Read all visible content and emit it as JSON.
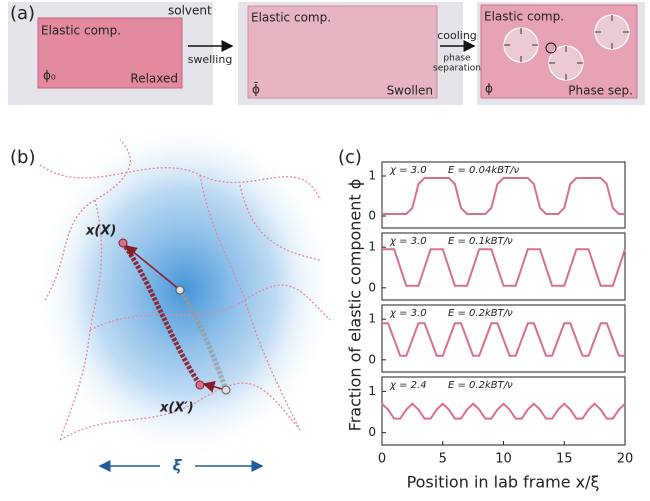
{
  "panel_a": {
    "label": "(a)",
    "boxes": [
      {
        "title": "Elastic comp.",
        "note": "solvent",
        "symbol": "ϕ₀",
        "state": "Relaxed"
      },
      {
        "title": "Elastic comp.",
        "symbol": "ϕ̄",
        "state": "Swollen"
      },
      {
        "title": "Elastic comp.",
        "symbol": "ϕ",
        "state": "Phase sep."
      }
    ],
    "arrows": [
      "swelling",
      "cooling",
      "phase",
      "separation"
    ]
  },
  "panel_b": {
    "label": "(b)",
    "texts": [
      "x(X)",
      "x(X′)",
      "ξ"
    ]
  },
  "panel_c": {
    "label": "(c)",
    "y_label": "Fraction of elastic component ϕ",
    "x_label": "Position in lab frame x/ξ"
  },
  "chart_data": [
    {
      "type": "line",
      "annotations": [
        "χ = 3.0",
        "E = 0.04kBT/ν"
      ],
      "x": [
        0,
        0.5,
        1,
        1.5,
        2,
        2.5,
        3,
        3.5,
        4,
        4.5,
        5,
        5.5,
        6,
        6.5,
        7,
        7.5,
        8,
        8.5,
        9,
        9.5,
        10,
        10.5,
        11,
        11.5,
        12,
        12.5,
        13,
        13.5,
        14,
        14.5,
        15,
        15.5,
        16,
        16.5,
        17,
        17.5,
        18,
        18.5,
        19,
        19.5,
        20
      ],
      "series": [
        {
          "color": "#d9708a",
          "values": [
            0.05,
            0.05,
            0.05,
            0.05,
            0.05,
            0.2,
            0.8,
            0.95,
            0.95,
            0.95,
            0.95,
            0.95,
            0.8,
            0.2,
            0.05,
            0.05,
            0.05,
            0.05,
            0.2,
            0.8,
            0.95,
            0.95,
            0.95,
            0.95,
            0.95,
            0.8,
            0.2,
            0.05,
            0.05,
            0.05,
            0.2,
            0.8,
            0.95,
            0.95,
            0.95,
            0.95,
            0.95,
            0.8,
            0.2,
            0.05,
            0.05
          ]
        }
      ],
      "xlim": [
        0,
        20
      ],
      "ylim": [
        -0.3,
        1.35
      ],
      "yticks": [
        0,
        1
      ]
    },
    {
      "type": "line",
      "annotations": [
        "χ = 3.0",
        "E = 0.1kBT/ν"
      ],
      "x": [
        0,
        0.5,
        1,
        1.5,
        2,
        2.5,
        3,
        3.5,
        4,
        4.5,
        5,
        5.5,
        6,
        6.5,
        7,
        7.5,
        8,
        8.5,
        9,
        9.5,
        10,
        10.5,
        11,
        11.5,
        12,
        12.5,
        13,
        13.5,
        14,
        14.5,
        15,
        15.5,
        16,
        16.5,
        17,
        17.5,
        18,
        18.5,
        19,
        19.5,
        20
      ],
      "series": [
        {
          "color": "#d9708a",
          "values": [
            0.95,
            0.95,
            0.95,
            0.5,
            0.05,
            0.05,
            0.05,
            0.5,
            0.95,
            0.95,
            0.95,
            0.5,
            0.05,
            0.05,
            0.05,
            0.5,
            0.95,
            0.95,
            0.95,
            0.5,
            0.05,
            0.05,
            0.05,
            0.5,
            0.95,
            0.95,
            0.95,
            0.5,
            0.05,
            0.05,
            0.05,
            0.5,
            0.95,
            0.95,
            0.95,
            0.5,
            0.05,
            0.05,
            0.05,
            0.5,
            0.95
          ]
        }
      ],
      "xlim": [
        0,
        20
      ],
      "ylim": [
        -0.3,
        1.35
      ],
      "yticks": [
        0,
        1
      ]
    },
    {
      "type": "line",
      "annotations": [
        "χ = 3.0",
        "E = 0.2kBT/ν"
      ],
      "x": [
        0,
        0.5,
        1,
        1.5,
        2,
        2.5,
        3,
        3.5,
        4,
        4.5,
        5,
        5.5,
        6,
        6.5,
        7,
        7.5,
        8,
        8.5,
        9,
        9.5,
        10,
        10.5,
        11,
        11.5,
        12,
        12.5,
        13,
        13.5,
        14,
        14.5,
        15,
        15.5,
        16,
        16.5,
        17,
        17.5,
        18,
        18.5,
        19,
        19.5,
        20
      ],
      "series": [
        {
          "color": "#d9708a",
          "values": [
            0.9,
            0.9,
            0.5,
            0.1,
            0.1,
            0.5,
            0.9,
            0.9,
            0.5,
            0.1,
            0.1,
            0.5,
            0.9,
            0.9,
            0.5,
            0.1,
            0.1,
            0.5,
            0.9,
            0.9,
            0.5,
            0.1,
            0.1,
            0.5,
            0.9,
            0.9,
            0.5,
            0.1,
            0.1,
            0.5,
            0.9,
            0.9,
            0.5,
            0.1,
            0.1,
            0.5,
            0.9,
            0.9,
            0.5,
            0.1,
            0.1
          ]
        }
      ],
      "xlim": [
        0,
        20
      ],
      "ylim": [
        -0.3,
        1.35
      ],
      "yticks": [
        0,
        1
      ]
    },
    {
      "type": "line",
      "annotations": [
        "χ = 2.4",
        "E = 0.2kBT/ν"
      ],
      "x": [
        0,
        0.5,
        1,
        1.5,
        2,
        2.5,
        3,
        3.5,
        4,
        4.5,
        5,
        5.5,
        6,
        6.5,
        7,
        7.5,
        8,
        8.5,
        9,
        9.5,
        10,
        10.5,
        11,
        11.5,
        12,
        12.5,
        13,
        13.5,
        14,
        14.5,
        15,
        15.5,
        16,
        16.5,
        17,
        17.5,
        18,
        18.5,
        19,
        19.5,
        20
      ],
      "series": [
        {
          "color": "#d9708a",
          "values": [
            0.7,
            0.56,
            0.34,
            0.34,
            0.56,
            0.7,
            0.56,
            0.34,
            0.34,
            0.56,
            0.7,
            0.56,
            0.34,
            0.34,
            0.56,
            0.7,
            0.56,
            0.34,
            0.34,
            0.56,
            0.7,
            0.56,
            0.34,
            0.34,
            0.56,
            0.7,
            0.56,
            0.34,
            0.34,
            0.56,
            0.7,
            0.56,
            0.34,
            0.34,
            0.56,
            0.7,
            0.56,
            0.34,
            0.34,
            0.56,
            0.7
          ]
        }
      ],
      "xlim": [
        0,
        20
      ],
      "ylim": [
        -0.3,
        1.35
      ],
      "yticks": [
        0,
        1
      ],
      "xticks": [
        0,
        5,
        10,
        15,
        20
      ]
    }
  ]
}
